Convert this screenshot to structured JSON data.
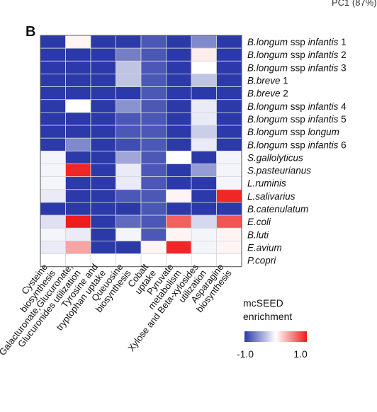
{
  "panel_label": "B",
  "corner_text": "PC1 (87%)",
  "chart_data": {
    "type": "heatmap",
    "rows": [
      {
        "prefix": "B.longum",
        "mid": " ssp ",
        "suffix": "infantis",
        "tail": " 1"
      },
      {
        "prefix": "B.longum",
        "mid": " ssp ",
        "suffix": "infantis",
        "tail": " 2"
      },
      {
        "prefix": "B.longum",
        "mid": " ssp ",
        "suffix": "infantis",
        "tail": " 3"
      },
      {
        "prefix": "B.breve",
        "mid": "",
        "suffix": "",
        "tail": " 1"
      },
      {
        "prefix": "B.breve",
        "mid": "",
        "suffix": "",
        "tail": " 2"
      },
      {
        "prefix": "B.longum",
        "mid": " ssp ",
        "suffix": "infantis",
        "tail": " 4"
      },
      {
        "prefix": "B.longum",
        "mid": " ssp ",
        "suffix": "infantis",
        "tail": " 5"
      },
      {
        "prefix": "B.longum",
        "mid": " ssp ",
        "suffix": "longum",
        "tail": ""
      },
      {
        "prefix": "B.longum",
        "mid": " ssp ",
        "suffix": "infantis",
        "tail": " 6"
      },
      {
        "prefix": "S.gallolyticus",
        "mid": "",
        "suffix": "",
        "tail": ""
      },
      {
        "prefix": "S.pasteurianus",
        "mid": "",
        "suffix": "",
        "tail": ""
      },
      {
        "prefix": "L.ruminis",
        "mid": "",
        "suffix": "",
        "tail": ""
      },
      {
        "prefix": "L.salivarius",
        "mid": "",
        "suffix": "",
        "tail": ""
      },
      {
        "prefix": "B.catenulatum",
        "mid": "",
        "suffix": "",
        "tail": ""
      },
      {
        "prefix": "E.coli",
        "mid": "",
        "suffix": "",
        "tail": ""
      },
      {
        "prefix": "B.luti",
        "mid": "",
        "suffix": "",
        "tail": ""
      },
      {
        "prefix": "E.avium",
        "mid": "",
        "suffix": "",
        "tail": ""
      },
      {
        "prefix": "P.copri",
        "mid": "",
        "suffix": "",
        "tail": ""
      }
    ],
    "columns": [
      {
        "lines": [
          "Cysteine",
          "biosynthesis"
        ]
      },
      {
        "lines": [
          "Galacturonate,Glucuronate,",
          "Glucuronides utilization"
        ]
      },
      {
        "lines": [
          "Tyrosine and",
          "tryptophan uptake"
        ]
      },
      {
        "lines": [
          "Queuosine",
          "biosynthesis"
        ]
      },
      {
        "lines": [
          "Cobalt",
          "uptake"
        ]
      },
      {
        "lines": [
          "Pyruvate",
          "metabolism"
        ]
      },
      {
        "lines": [
          "Xylose and Beta-xylosides",
          "utilization"
        ]
      },
      {
        "lines": [
          "Asparagine",
          "biosynthesis"
        ]
      }
    ],
    "values": [
      [
        -1.0,
        0.05,
        -1.0,
        -1.0,
        -0.85,
        -1.0,
        -0.6,
        -1.0
      ],
      [
        -1.0,
        -1.0,
        -1.0,
        -0.65,
        -0.85,
        -1.0,
        0.08,
        -1.0
      ],
      [
        -1.0,
        -1.0,
        -1.0,
        -0.3,
        -0.85,
        -1.0,
        0.0,
        -1.0
      ],
      [
        -1.0,
        -1.0,
        -1.0,
        -0.3,
        -0.85,
        -1.0,
        -0.3,
        -1.0
      ],
      [
        -1.0,
        -1.0,
        -1.0,
        -1.0,
        -0.85,
        -1.0,
        -1.0,
        -1.0
      ],
      [
        -1.0,
        0.0,
        -1.0,
        -0.55,
        -0.85,
        -1.0,
        -0.1,
        -1.0
      ],
      [
        -1.0,
        -1.0,
        -1.0,
        -0.85,
        -0.85,
        -1.0,
        -0.1,
        -1.0
      ],
      [
        -1.0,
        -1.0,
        -1.0,
        -0.85,
        -0.85,
        -1.0,
        -0.25,
        -1.0
      ],
      [
        -1.0,
        -0.6,
        -1.0,
        -0.9,
        -0.85,
        -1.0,
        -0.1,
        -1.0
      ],
      [
        -0.05,
        -1.0,
        -1.0,
        -0.45,
        -0.85,
        0.0,
        -1.0,
        -0.05
      ],
      [
        -0.05,
        0.95,
        -1.0,
        -0.1,
        -0.85,
        -1.0,
        -0.5,
        -0.05
      ],
      [
        -0.05,
        -1.0,
        -1.0,
        -0.1,
        -0.85,
        -1.0,
        -1.0,
        -0.05
      ],
      [
        -0.1,
        -1.0,
        -1.0,
        -0.85,
        -0.85,
        0.05,
        -1.0,
        0.95
      ],
      [
        -1.0,
        -1.0,
        -1.0,
        -1.0,
        -0.85,
        -1.0,
        -1.0,
        -1.0
      ],
      [
        -0.15,
        1.0,
        -1.0,
        -0.75,
        -0.85,
        0.7,
        -0.2,
        0.75
      ],
      [
        -0.05,
        -0.1,
        -1.0,
        -0.05,
        -0.85,
        0.05,
        -0.05,
        0.05
      ],
      [
        -0.1,
        0.4,
        -1.0,
        -1.0,
        0.05,
        0.95,
        -0.05,
        0.05
      ],
      [
        0.0,
        0.0,
        0.0,
        0.0,
        0.0,
        0.0,
        0.0,
        0.0
      ]
    ],
    "colorbar": {
      "title_lines": [
        "mcSEED",
        "enrichment"
      ],
      "min_label": "-1.0",
      "max_label": "1.0",
      "min_color": "#2b3aa8",
      "mid_color": "#ffffff",
      "max_color": "#ee1c1c"
    },
    "grid": true
  }
}
